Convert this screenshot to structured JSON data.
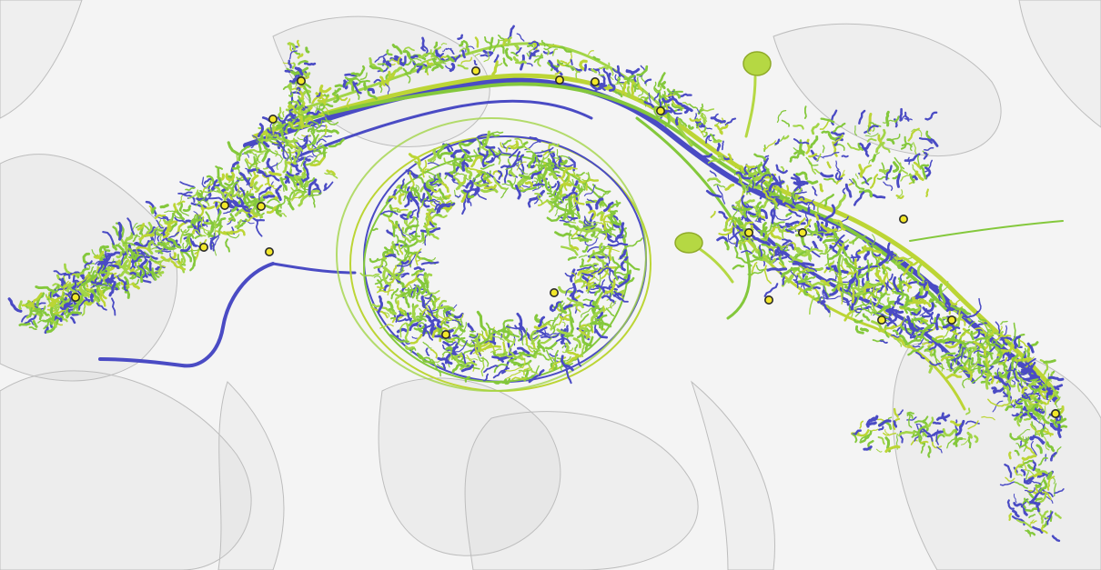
{
  "scene": {
    "background_color": "#f4f4f4",
    "tissue_color": "#c9c9c9",
    "palette": {
      "blue": "#4a4bc4",
      "green": "#84c83c",
      "yellow_green": "#bcd535",
      "lime": "#a2d548",
      "soma": "#b5d843",
      "synapse_fill": "#f2e72a",
      "synapse_stroke": "#2b2b2b"
    },
    "structures": {
      "left_arbor": "neuron-arbor",
      "ring": "ring-shaped-neuropil",
      "right_arbor": "neuron-arbor",
      "tract": "axon-bundle",
      "somata": "cell-body"
    }
  }
}
